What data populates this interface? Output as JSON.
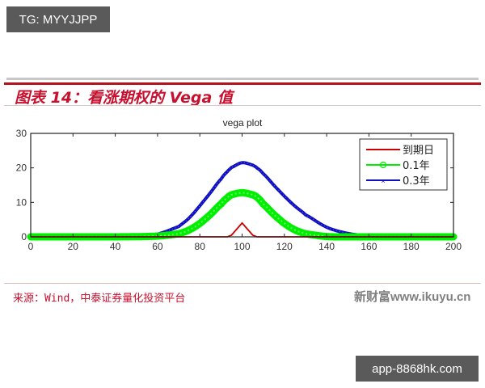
{
  "overlay": {
    "top_tag": "TG: MYYJJPP",
    "bottom_tag": "app-8868hk.com"
  },
  "figure": {
    "title": "图表 14：看涨期权的 Vega 值",
    "source": "来源：Wind，中泰证券量化投资平台",
    "watermark": "新财富www.ikuyu.cn",
    "colors": {
      "title_red": "#c8102e",
      "rule_red": "#b5121b"
    }
  },
  "chart_data": {
    "type": "line",
    "title": "vega plot",
    "xlabel": "",
    "ylabel": "",
    "xlim": [
      0,
      200
    ],
    "ylim": [
      0,
      30
    ],
    "xticks": [
      0,
      20,
      40,
      60,
      80,
      100,
      120,
      140,
      160,
      180,
      200
    ],
    "yticks": [
      0,
      10,
      20,
      30
    ],
    "grid": false,
    "legend_position": "upper right",
    "x": [
      0,
      20,
      40,
      60,
      70,
      75,
      80,
      85,
      90,
      93,
      95,
      100,
      105,
      107,
      110,
      115,
      120,
      125,
      130,
      140,
      150,
      160,
      180,
      200
    ],
    "series": [
      {
        "name": "到期日",
        "color": "#cc0000",
        "marker": "none",
        "values": [
          0,
          0,
          0,
          0,
          0,
          0,
          0,
          0,
          0,
          0,
          0.5,
          4.0,
          0.5,
          0,
          0,
          0,
          0,
          0,
          0,
          0,
          0,
          0,
          0,
          0
        ]
      },
      {
        "name": "0.1年",
        "color": "#00ee00",
        "marker": "circle",
        "values": [
          0,
          0,
          0,
          0.2,
          0.9,
          2.0,
          3.9,
          6.5,
          9.5,
          11.3,
          12.2,
          12.8,
          12.2,
          11.5,
          9.5,
          6.5,
          3.9,
          2.0,
          0.9,
          0.1,
          0,
          0,
          0,
          0
        ]
      },
      {
        "name": "0.3年",
        "color": "#1010c0",
        "marker": "x",
        "values": [
          0,
          0,
          0.1,
          0.8,
          3.0,
          5.5,
          9.0,
          12.8,
          16.7,
          18.9,
          20.1,
          21.5,
          20.8,
          20.0,
          18.3,
          15.0,
          11.8,
          8.9,
          6.4,
          2.8,
          1.0,
          0.3,
          0,
          0
        ]
      }
    ]
  }
}
